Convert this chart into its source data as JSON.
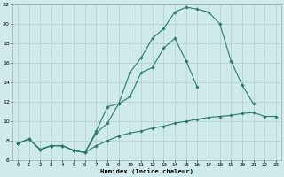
{
  "xlabel": "Humidex (Indice chaleur)",
  "bg_color": "#ceeaea",
  "grid_color": "#b0cccc",
  "line_color": "#2a7a6a",
  "xlim": [
    -0.5,
    23.5
  ],
  "ylim": [
    6,
    22
  ],
  "xticks": [
    0,
    1,
    2,
    3,
    4,
    5,
    6,
    7,
    8,
    9,
    10,
    11,
    12,
    13,
    14,
    15,
    16,
    17,
    18,
    19,
    20,
    21,
    22,
    23
  ],
  "yticks": [
    6,
    8,
    10,
    12,
    14,
    16,
    18,
    20,
    22
  ],
  "line1_x": [
    0,
    1,
    2,
    3,
    4,
    5,
    6,
    7,
    8,
    9,
    10,
    11,
    12,
    13,
    14,
    15,
    16,
    17,
    18,
    19,
    20,
    21,
    22,
    23
  ],
  "line1_y": [
    7.7,
    8.2,
    7.1,
    7.5,
    7.5,
    7.0,
    6.8,
    7.5,
    8.0,
    8.5,
    8.8,
    9.0,
    9.3,
    9.5,
    9.8,
    10.0,
    10.2,
    10.4,
    10.5,
    10.6,
    10.8,
    10.9,
    10.5,
    10.5
  ],
  "line2_x": [
    0,
    1,
    2,
    3,
    4,
    5,
    6,
    7,
    8,
    9,
    10,
    11,
    12,
    13,
    14,
    15,
    16,
    17,
    18,
    19,
    20,
    21,
    22,
    23
  ],
  "line2_y": [
    7.7,
    8.2,
    7.1,
    7.5,
    7.5,
    7.0,
    6.8,
    9.0,
    11.5,
    11.8,
    15.0,
    16.5,
    18.5,
    19.5,
    21.2,
    21.7,
    21.5,
    21.2,
    20.0,
    16.2,
    13.7,
    11.8,
    null,
    null
  ],
  "line3_x": [
    0,
    1,
    2,
    3,
    4,
    5,
    6,
    7,
    8,
    9,
    10,
    11,
    12,
    13,
    14,
    15,
    16,
    17,
    18,
    19,
    20
  ],
  "line3_y": [
    7.7,
    8.2,
    7.1,
    7.5,
    7.5,
    7.0,
    6.8,
    8.8,
    9.8,
    11.8,
    12.5,
    15.0,
    15.5,
    17.5,
    18.5,
    16.2,
    13.5,
    null,
    null,
    null,
    null
  ]
}
